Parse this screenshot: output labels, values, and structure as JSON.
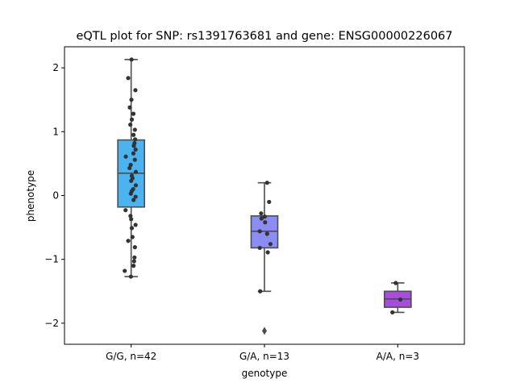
{
  "chart_data": {
    "type": "box",
    "title": "eQTL plot for SNP: rs1391763681 and gene: ENSG00000226067",
    "xlabel": "genotype",
    "ylabel": "phenotype",
    "ylim": [
      -2.33,
      2.33
    ],
    "yticks": [
      {
        "value": 2,
        "label": "2"
      },
      {
        "value": 1,
        "label": "1"
      },
      {
        "value": 0,
        "label": "0"
      },
      {
        "value": -1,
        "label": "−1"
      },
      {
        "value": -2,
        "label": "−2"
      }
    ],
    "grid": false,
    "colors": {
      "box_edge": "#4d4d4d",
      "point": "#333333"
    },
    "groups": [
      {
        "label": "G/G, n=42",
        "color": "#4bb4f0",
        "q1": -0.18,
        "median": 0.35,
        "q3": 0.87,
        "whisker_low": -1.27,
        "whisker_high": 2.13,
        "outliers": [],
        "points": [
          {
            "dx": 0.03,
            "y": 2.13
          },
          {
            "dx": -0.22,
            "y": 1.84
          },
          {
            "dx": 0.32,
            "y": 1.65
          },
          {
            "dx": 0.02,
            "y": 1.5
          },
          {
            "dx": -0.1,
            "y": 1.38
          },
          {
            "dx": 0.17,
            "y": 1.28
          },
          {
            "dx": 0.05,
            "y": 1.19
          },
          {
            "dx": -0.06,
            "y": 1.11
          },
          {
            "dx": 0.28,
            "y": 1.03
          },
          {
            "dx": 0.18,
            "y": 0.95
          },
          {
            "dx": 0.3,
            "y": 0.88
          },
          {
            "dx": 0.25,
            "y": 0.82
          },
          {
            "dx": 0.2,
            "y": 0.78
          },
          {
            "dx": 0.33,
            "y": 0.72
          },
          {
            "dx": 0.17,
            "y": 0.66
          },
          {
            "dx": -0.4,
            "y": 0.61
          },
          {
            "dx": 0.28,
            "y": 0.56
          },
          {
            "dx": -0.03,
            "y": 0.48
          },
          {
            "dx": -0.12,
            "y": 0.43
          },
          {
            "dx": 0.35,
            "y": 0.37
          },
          {
            "dx": 0.05,
            "y": 0.31
          },
          {
            "dx": 0.1,
            "y": 0.27
          },
          {
            "dx": 0.0,
            "y": 0.23
          },
          {
            "dx": 0.35,
            "y": 0.16
          },
          {
            "dx": 0.15,
            "y": 0.1
          },
          {
            "dx": 0.05,
            "y": 0.07
          },
          {
            "dx": -0.02,
            "y": 0.03
          },
          {
            "dx": 0.33,
            "y": -0.02
          },
          {
            "dx": 0.18,
            "y": -0.07
          },
          {
            "dx": -0.42,
            "y": -0.23
          },
          {
            "dx": -0.05,
            "y": -0.32
          },
          {
            "dx": 0.0,
            "y": -0.37
          },
          {
            "dx": 0.33,
            "y": -0.46
          },
          {
            "dx": 0.05,
            "y": -0.51
          },
          {
            "dx": 0.1,
            "y": -0.65
          },
          {
            "dx": -0.22,
            "y": -0.71
          },
          {
            "dx": 0.28,
            "y": -0.81
          },
          {
            "dx": 0.25,
            "y": -0.97
          },
          {
            "dx": 0.22,
            "y": -1.03
          },
          {
            "dx": 0.18,
            "y": -1.1
          },
          {
            "dx": -0.48,
            "y": -1.18
          },
          {
            "dx": -0.02,
            "y": -1.27
          }
        ]
      },
      {
        "label": "G/A, n=13",
        "color": "#8c8cf5",
        "q1": -0.82,
        "median": -0.56,
        "q3": -0.32,
        "whisker_low": -1.5,
        "whisker_high": 0.2,
        "outliers": [
          -2.12
        ],
        "points": [
          {
            "dx": 0.2,
            "y": 0.2
          },
          {
            "dx": 0.35,
            "y": -0.1
          },
          {
            "dx": -0.25,
            "y": -0.28
          },
          {
            "dx": 0.02,
            "y": -0.33
          },
          {
            "dx": -0.22,
            "y": -0.36
          },
          {
            "dx": 0.05,
            "y": -0.42
          },
          {
            "dx": -0.35,
            "y": -0.56
          },
          {
            "dx": 0.2,
            "y": -0.6
          },
          {
            "dx": 0.45,
            "y": -0.76
          },
          {
            "dx": -0.35,
            "y": -0.82
          },
          {
            "dx": 0.25,
            "y": -0.89
          },
          {
            "dx": -0.32,
            "y": -1.5
          }
        ]
      },
      {
        "label": "A/A, n=3",
        "color": "#a64ddd",
        "q1": -1.75,
        "median": -1.62,
        "q3": -1.5,
        "whisker_low": -1.83,
        "whisker_high": -1.37,
        "outliers": [],
        "points": [
          {
            "dx": -0.15,
            "y": -1.37
          },
          {
            "dx": 0.2,
            "y": -1.63
          },
          {
            "dx": -0.4,
            "y": -1.83
          }
        ]
      }
    ]
  }
}
